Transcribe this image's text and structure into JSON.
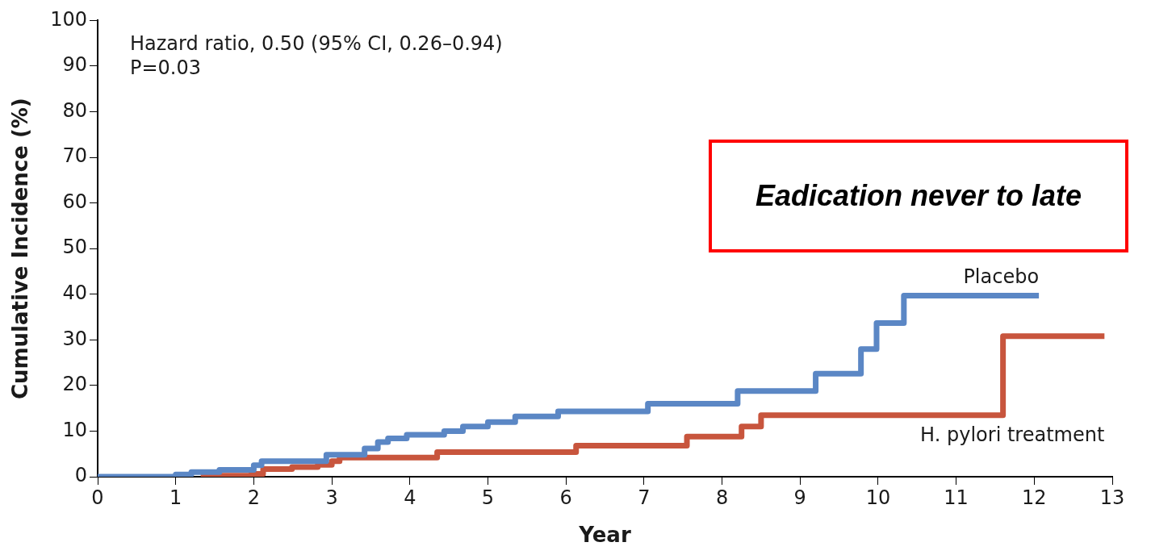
{
  "chart_data": {
    "type": "step",
    "xlabel": "Year",
    "ylabel": "Cumulative Incidence (%)",
    "annotations": [
      "Hazard ratio, 0.50 (95% CI, 0.26–0.94)",
      "P=0.03",
      "Eadication never to late"
    ],
    "xlim": [
      0,
      13
    ],
    "xticks": [
      0,
      1,
      2,
      3,
      4,
      5,
      6,
      7,
      8,
      9,
      10,
      11,
      12,
      13
    ],
    "ylim": [
      0,
      100
    ],
    "yticks": [
      0,
      10,
      20,
      30,
      40,
      50,
      60,
      70,
      80,
      90,
      100
    ],
    "grid": false,
    "legend": false,
    "marker": "none",
    "line_style": "solid",
    "series": [
      {
        "name": "Placebo",
        "color": "#5b87c5",
        "x": [
          0,
          1.0,
          1.2,
          1.56,
          2.0,
          2.1,
          2.93,
          3.42,
          3.59,
          3.72,
          3.96,
          4.44,
          4.68,
          5.0,
          5.35,
          5.9,
          7.05,
          8.2,
          9.2,
          9.78,
          9.98,
          10.33,
          12.06
        ],
        "values": [
          0,
          0.5,
          1,
          1.5,
          2.5,
          3.4,
          4.8,
          6.2,
          7.6,
          8.4,
          9.2,
          10,
          11,
          12,
          13.2,
          14.3,
          16,
          18.8,
          22.6,
          28,
          33.7,
          39.7,
          39.7
        ]
      },
      {
        "name": "H. pylori treatment",
        "color": "#c8553d",
        "x": [
          1.32,
          1.97,
          2.12,
          2.49,
          2.82,
          3.0,
          3.1,
          4.35,
          6.13,
          7.55,
          8.25,
          8.5,
          11.6,
          12.9
        ],
        "values": [
          0.2,
          0.6,
          1.7,
          2.1,
          2.6,
          3.4,
          4.2,
          5.4,
          6.8,
          8.8,
          11,
          13.5,
          30.8,
          30.8
        ]
      }
    ]
  }
}
